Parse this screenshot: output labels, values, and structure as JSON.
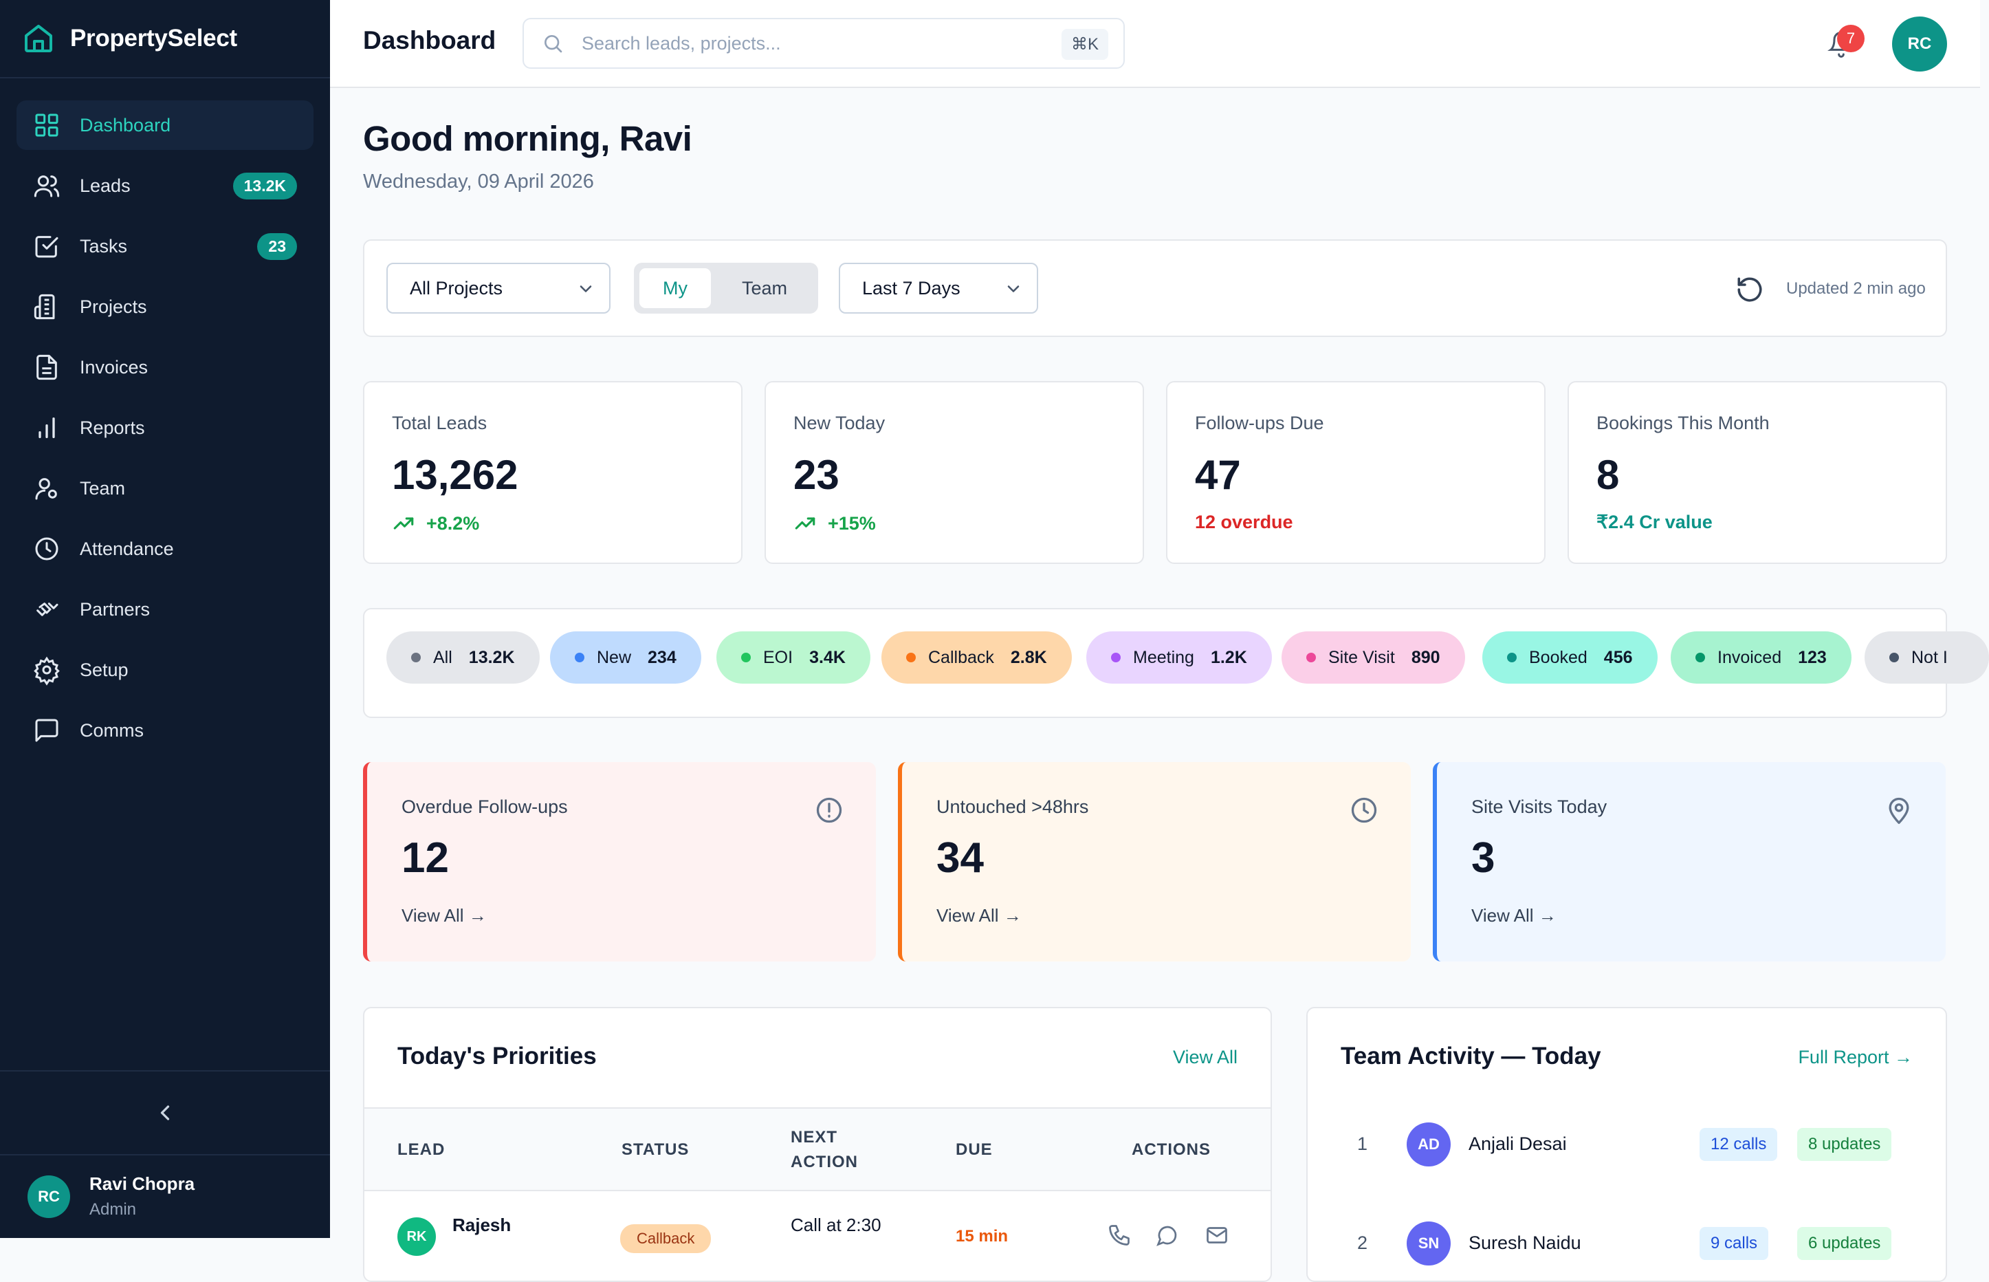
{
  "app": {
    "name": "PropertySelect"
  },
  "sidebar": {
    "items": [
      {
        "label": "Dashboard",
        "icon": "grid-icon"
      },
      {
        "label": "Leads",
        "badge": "13.2K",
        "icon": "users-icon"
      },
      {
        "label": "Tasks",
        "badge": "23",
        "icon": "checkbox-icon"
      },
      {
        "label": "Projects",
        "icon": "building-icon"
      },
      {
        "label": "Invoices",
        "icon": "document-icon"
      },
      {
        "label": "Reports",
        "icon": "bar-chart-icon"
      },
      {
        "label": "Team",
        "icon": "user-icon"
      },
      {
        "label": "Attendance",
        "icon": "clock-icon"
      },
      {
        "label": "Partners",
        "icon": "handshake-icon"
      },
      {
        "label": "Setup",
        "icon": "gear-icon"
      },
      {
        "label": "Comms",
        "icon": "message-icon"
      }
    ],
    "active": "Dashboard",
    "user": {
      "initials": "RC",
      "name": "Ravi Chopra",
      "role": "Admin"
    }
  },
  "header": {
    "title": "Dashboard",
    "search_placeholder": "Search leads, projects...",
    "search_shortcut": "⌘K",
    "notifications_count": "7",
    "avatar_initials": "RC"
  },
  "greeting": {
    "title": "Good morning, Ravi",
    "date": "Wednesday, 09 April 2026"
  },
  "filters": {
    "project": "All Projects",
    "scope_options": [
      "My",
      "Team"
    ],
    "scope_selected": "My",
    "range": "Last 7 Days",
    "updated": "Updated 2 min ago"
  },
  "stats": [
    {
      "label": "Total Leads",
      "value": "13,262",
      "sub": "+8.2%"
    },
    {
      "label": "New Today",
      "value": "23",
      "sub": "+15%"
    },
    {
      "label": "Follow-ups Due",
      "value": "47",
      "sub": "12 overdue"
    },
    {
      "label": "Bookings This Month",
      "value": "8",
      "sub": "₹2.4 Cr value"
    }
  ],
  "pipeline": [
    {
      "label": "All",
      "count": "13.2K",
      "bg": "#e5e7eb",
      "dot": "#6b7280"
    },
    {
      "label": "New",
      "count": "234",
      "bg": "#bfdbfe",
      "dot": "#3b82f6"
    },
    {
      "label": "EOI",
      "count": "3.4K",
      "bg": "#bbf7d0",
      "dot": "#22c55e"
    },
    {
      "label": "Callback",
      "count": "2.8K",
      "bg": "#fed7aa",
      "dot": "#f97316"
    },
    {
      "label": "Meeting",
      "count": "1.2K",
      "bg": "#e9d5ff",
      "dot": "#a855f7"
    },
    {
      "label": "Site Visit",
      "count": "890",
      "bg": "#fbcfe8",
      "dot": "#ec4899"
    },
    {
      "label": "Booked",
      "count": "456",
      "bg": "#99f6e4",
      "dot": "#0d9488"
    },
    {
      "label": "Invoiced",
      "count": "123",
      "bg": "#a7f3d0",
      "dot": "#059669"
    },
    {
      "label": "Not I",
      "count": "",
      "bg": "#e5e7eb",
      "dot": "#475569"
    }
  ],
  "alerts": [
    {
      "label": "Overdue Follow-ups",
      "value": "12",
      "link": "View All →",
      "accent": "#ef4444",
      "bg": "#fef2f2",
      "icon": "alert-circle-icon"
    },
    {
      "label": "Untouched >48hrs",
      "value": "34",
      "link": "View All →",
      "accent": "#f97316",
      "bg": "#fff7ed",
      "icon": "clock-icon"
    },
    {
      "label": "Site Visits Today",
      "value": "3",
      "link": "View All →",
      "accent": "#3b82f6",
      "bg": "#eff6ff",
      "icon": "map-pin-icon"
    }
  ],
  "priorities": {
    "title": "Today's Priorities",
    "link": "View All",
    "columns": [
      "LEAD",
      "STATUS",
      "NEXT ACTION",
      "DUE",
      "ACTIONS"
    ],
    "rows": [
      {
        "initials": "RK",
        "lead": "Rajesh",
        "status": "Callback",
        "next_action": "Call at 2:30",
        "due": "15 min"
      }
    ]
  },
  "team_activity": {
    "title": "Team Activity — Today",
    "link": "Full Report →",
    "rows": [
      {
        "rank": "1",
        "initials": "AD",
        "name": "Anjali Desai",
        "calls": "12 calls",
        "updates": "8 updates"
      },
      {
        "rank": "2",
        "initials": "SN",
        "name": "Suresh Naidu",
        "calls": "9 calls",
        "updates": "6 updates"
      }
    ]
  }
}
